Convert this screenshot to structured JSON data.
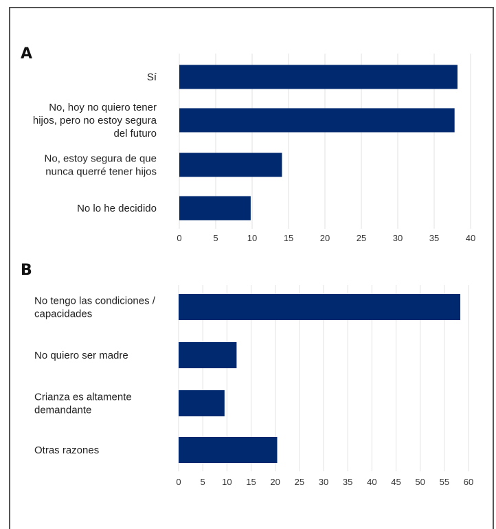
{
  "panels": [
    {
      "letter": "A"
    },
    {
      "letter": "B"
    }
  ],
  "chart_data": [
    {
      "type": "bar",
      "orientation": "horizontal",
      "categories": [
        [
          "Sí"
        ],
        [
          "No, hoy no quiero tener",
          "hijos, pero no estoy segura",
          "del futuro"
        ],
        [
          "No, estoy segura de que",
          "nunca querré tener hijos"
        ],
        [
          "No lo he decidido"
        ]
      ],
      "values": [
        38.2,
        37.8,
        14.1,
        9.8
      ],
      "xlim": [
        0,
        40
      ],
      "xticks": [
        "0",
        "5",
        "10",
        "15",
        "20",
        "25",
        "30",
        "35",
        "40"
      ],
      "grid": true,
      "bar_color": "#012970"
    },
    {
      "type": "bar",
      "orientation": "horizontal",
      "categories": [
        [
          "No tengo las condiciones /",
          "capacidades"
        ],
        [
          "No quiero ser madre"
        ],
        [
          "Crianza es altamente",
          "demandante"
        ],
        [
          "Otras razones"
        ]
      ],
      "values": [
        58.3,
        12.0,
        9.5,
        20.4
      ],
      "xlim": [
        0,
        60
      ],
      "xticks": [
        "0",
        "5",
        "10",
        "15",
        "20",
        "25",
        "30",
        "35",
        "40",
        "45",
        "50",
        "55",
        "60"
      ],
      "grid": true,
      "bar_color": "#012970"
    }
  ]
}
